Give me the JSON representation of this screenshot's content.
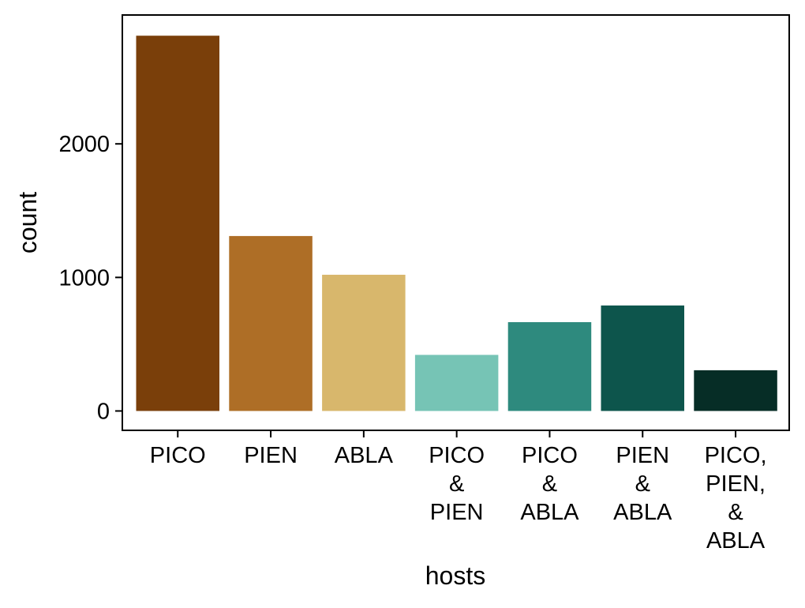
{
  "chart_data": {
    "type": "bar",
    "title": "",
    "xlabel": "hosts",
    "ylabel": "count",
    "categories": [
      [
        "PICO"
      ],
      [
        "PIEN"
      ],
      [
        "ABLA"
      ],
      [
        "PICO",
        "&",
        "PIEN"
      ],
      [
        "PICO",
        "&",
        "ABLA"
      ],
      [
        "PIEN",
        "&",
        "ABLA"
      ],
      [
        "PICO,",
        "PIEN,",
        "&",
        "ABLA"
      ]
    ],
    "values": [
      2810,
      1310,
      1020,
      420,
      665,
      790,
      305
    ],
    "colors": [
      "#7a3f0a",
      "#ae6e26",
      "#d8b76c",
      "#76c4b5",
      "#2e8a7e",
      "#0d554c",
      "#062d26"
    ],
    "yticks": [
      0,
      1000,
      2000
    ],
    "ylim": [
      -145,
      2965
    ],
    "grid": false,
    "legend": "none"
  }
}
